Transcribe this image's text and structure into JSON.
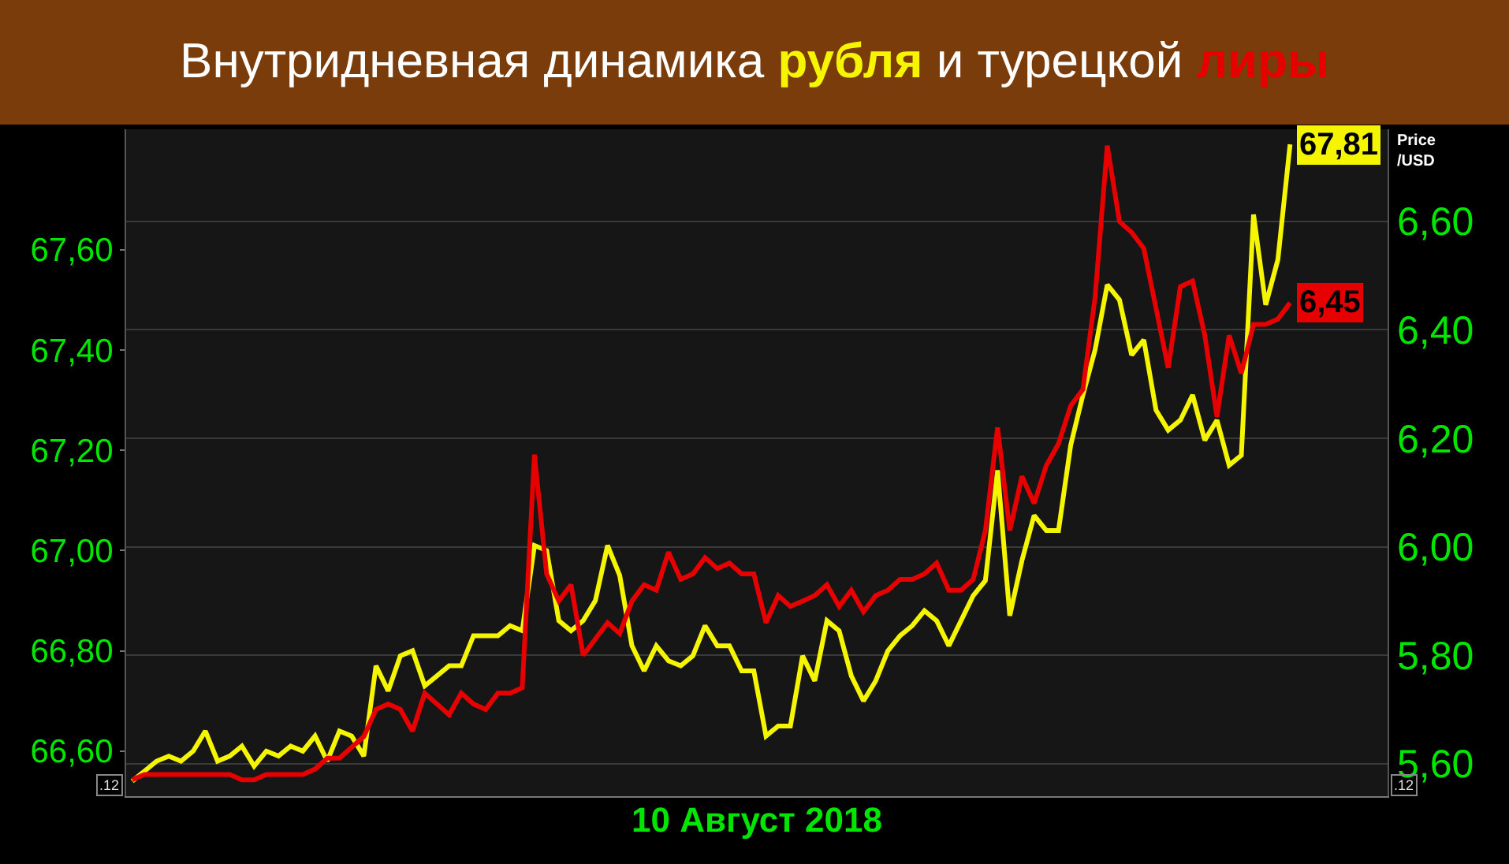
{
  "chart_data": {
    "type": "line",
    "title": "Внутридневная динамика рубля и турецкой лиры",
    "xlabel": "10 Август 2018",
    "y2label": "Price /USD",
    "categories": [
      null,
      null,
      null,
      null,
      null,
      null,
      null,
      null,
      null,
      null,
      null,
      null,
      null,
      null,
      null,
      null,
      null,
      null,
      null,
      null,
      null,
      null,
      null,
      null,
      null,
      null,
      null,
      null,
      null,
      null,
      null,
      null,
      null,
      null,
      null,
      null,
      null,
      null,
      null,
      null,
      null,
      null,
      null,
      null,
      null,
      null,
      null,
      null,
      null,
      null,
      null,
      null,
      null,
      null,
      null,
      null,
      null,
      null,
      null,
      null,
      null,
      null,
      null,
      null,
      null,
      null,
      null,
      null,
      null,
      null,
      null,
      null,
      null,
      null,
      null,
      null,
      null,
      null,
      null,
      null,
      null,
      null,
      null,
      null,
      null,
      null,
      null,
      null,
      null,
      null,
      null,
      null,
      null,
      null,
      null,
      null
    ],
    "series": [
      {
        "color": "#f5f500",
        "axis": "y",
        "values": [
          66.54,
          66.56,
          66.58,
          66.59,
          66.58,
          66.6,
          66.64,
          66.58,
          66.59,
          66.61,
          66.57,
          66.6,
          66.59,
          66.61,
          66.6,
          66.63,
          66.58,
          66.64,
          66.63,
          66.59,
          66.77,
          66.72,
          66.79,
          66.8,
          66.73,
          66.75,
          66.77,
          66.77,
          66.83,
          66.83,
          66.83,
          66.85,
          66.84,
          67.01,
          67.0,
          66.86,
          66.84,
          66.86,
          66.9,
          67.01,
          66.95,
          66.81,
          66.76,
          66.81,
          66.78,
          66.77,
          66.79,
          66.85,
          66.81,
          66.81,
          66.76,
          66.76,
          66.63,
          66.65,
          66.65,
          66.79,
          66.74,
          66.86,
          66.84,
          66.75,
          66.7,
          66.74,
          66.8,
          66.83,
          66.85,
          66.88,
          66.86,
          66.81,
          66.86,
          66.91,
          66.94,
          67.16,
          66.87,
          66.98,
          67.07,
          67.04,
          67.04,
          67.21,
          67.31,
          67.4,
          67.53,
          67.5,
          67.39,
          67.42,
          67.28,
          67.24,
          67.26,
          67.31,
          67.22,
          67.26,
          67.17,
          67.19,
          67.67,
          67.49,
          67.58,
          67.81
        ],
        "value_labels": [
          null,
          null,
          null,
          null,
          null,
          null,
          null,
          null,
          null,
          null,
          null,
          null,
          null,
          null,
          null,
          null,
          null,
          null,
          null,
          null,
          null,
          null,
          null,
          null,
          null,
          null,
          null,
          null,
          null,
          null,
          null,
          null,
          null,
          null,
          null,
          null,
          null,
          null,
          null,
          null,
          null,
          null,
          null,
          null,
          null,
          null,
          null,
          null,
          null,
          null,
          null,
          null,
          null,
          null,
          null,
          null,
          null,
          null,
          null,
          null,
          null,
          null,
          null,
          null,
          null,
          null,
          null,
          null,
          null,
          null,
          null,
          null,
          null,
          null,
          null,
          null,
          null,
          null,
          null,
          null,
          null,
          null,
          null,
          null,
          null,
          null,
          null,
          null,
          null,
          null,
          null,
          null,
          null,
          null,
          null,
          "67,81"
        ]
      },
      {
        "color": "#e60000",
        "axis": "y2",
        "values": [
          5.57,
          5.58,
          5.58,
          5.58,
          5.58,
          5.58,
          5.58,
          5.58,
          5.58,
          5.57,
          5.57,
          5.58,
          5.58,
          5.58,
          5.58,
          5.59,
          5.61,
          5.61,
          5.63,
          5.65,
          5.7,
          5.71,
          5.7,
          5.66,
          5.73,
          5.71,
          5.69,
          5.73,
          5.71,
          5.7,
          5.73,
          5.73,
          5.74,
          6.17,
          5.95,
          5.9,
          5.93,
          5.8,
          5.83,
          5.86,
          5.84,
          5.9,
          5.93,
          5.92,
          5.99,
          5.94,
          5.95,
          5.98,
          5.96,
          5.97,
          5.95,
          5.95,
          5.86,
          5.91,
          5.89,
          5.9,
          5.91,
          5.93,
          5.89,
          5.92,
          5.88,
          5.91,
          5.92,
          5.94,
          5.94,
          5.95,
          5.97,
          5.92,
          5.92,
          5.94,
          6.03,
          6.22,
          6.03,
          6.13,
          6.08,
          6.15,
          6.19,
          6.26,
          6.29,
          6.46,
          6.74,
          6.6,
          6.58,
          6.55,
          6.44,
          6.33,
          6.48,
          6.49,
          6.39,
          6.24,
          6.39,
          6.32,
          6.41,
          6.41,
          6.42,
          6.45
        ],
        "value_labels": [
          null,
          null,
          null,
          null,
          null,
          null,
          null,
          null,
          null,
          null,
          null,
          null,
          null,
          null,
          null,
          null,
          null,
          null,
          null,
          null,
          null,
          null,
          null,
          null,
          null,
          null,
          null,
          null,
          null,
          null,
          null,
          null,
          null,
          null,
          null,
          null,
          null,
          null,
          null,
          null,
          null,
          null,
          null,
          null,
          null,
          null,
          null,
          null,
          null,
          null,
          null,
          null,
          null,
          null,
          null,
          null,
          null,
          null,
          null,
          null,
          null,
          null,
          null,
          null,
          null,
          null,
          null,
          null,
          null,
          null,
          null,
          null,
          null,
          null,
          null,
          null,
          null,
          null,
          null,
          null,
          null,
          null,
          null,
          null,
          null,
          null,
          null,
          null,
          null,
          null,
          null,
          null,
          null,
          null,
          null,
          "6,45"
        ]
      }
    ],
    "ylim": [
      66.51,
      67.84
    ],
    "yticks": [
      {
        "value": 66.6,
        "label": "66,60"
      },
      {
        "value": 66.8,
        "label": "66,80"
      },
      {
        "value": 67.0,
        "label": "67,00"
      },
      {
        "value": 67.2,
        "label": "67,20"
      },
      {
        "value": 67.4,
        "label": "67,40"
      },
      {
        "value": 67.6,
        "label": "67,60"
      }
    ],
    "y2lim": [
      5.54,
      6.77
    ],
    "y2ticks": [
      {
        "value": 5.6,
        "label": "5,60"
      },
      {
        "value": 5.8,
        "label": "5,80"
      },
      {
        "value": 6.0,
        "label": "6,00"
      },
      {
        "value": 6.2,
        "label": "6,20"
      },
      {
        "value": 6.4,
        "label": "6,40"
      },
      {
        "value": 6.6,
        "label": "6,60"
      }
    ],
    "grid": "y",
    "marker": "none",
    "line_style": "solid",
    "annotations": [
      ".12",
      ".12"
    ]
  }
}
